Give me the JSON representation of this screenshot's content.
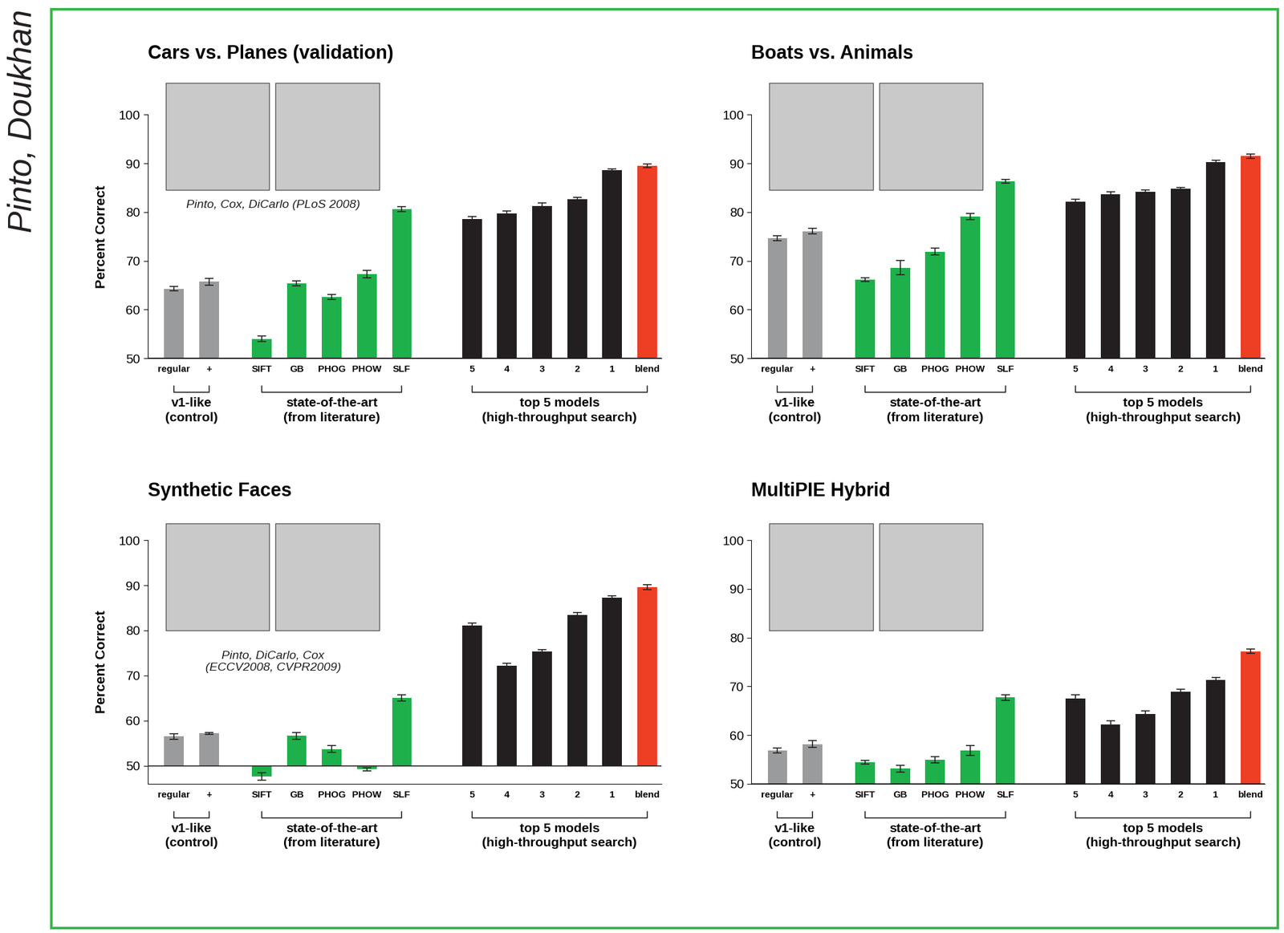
{
  "border_text": "Pinto, Doukhan",
  "chart_data": [
    {
      "type": "bar",
      "title": "Cars vs. Planes (validation)",
      "y_label": "Percent Correct",
      "citation": "Pinto, Cox, DiCarlo (PLoS 2008)",
      "ylim": [
        50,
        100
      ],
      "yticks": [
        50,
        60,
        70,
        80,
        90,
        100
      ],
      "baseline": 50,
      "groups": [
        {
          "name": "v1-like\n(control)",
          "categories": [
            "regular",
            "+"
          ],
          "values": [
            64.3,
            65.7
          ],
          "errors": [
            0.5,
            0.7
          ],
          "colors": [
            "#9a9b9d",
            "#9a9b9d"
          ]
        },
        {
          "name": "state-of-the-art\n(from literature)",
          "categories": [
            "SIFT",
            "GB",
            "PHOG",
            "PHOW",
            "SLF"
          ],
          "values": [
            54.0,
            65.4,
            62.6,
            67.3,
            80.6
          ],
          "errors": [
            0.6,
            0.5,
            0.5,
            0.8,
            0.5
          ],
          "colors": [
            "#1db04b",
            "#1db04b",
            "#1db04b",
            "#1db04b",
            "#1db04b"
          ]
        },
        {
          "name": "top 5 models\n(high-throughput search)",
          "categories": [
            "5",
            "4",
            "3",
            "2",
            "1",
            "blend"
          ],
          "values": [
            78.6,
            79.7,
            81.3,
            82.7,
            88.6,
            89.5
          ],
          "errors": [
            0.5,
            0.5,
            0.6,
            0.4,
            0.3,
            0.4
          ],
          "colors": [
            "#231f20",
            "#231f20",
            "#231f20",
            "#231f20",
            "#231f20",
            "#ee3e23"
          ]
        }
      ]
    },
    {
      "type": "bar",
      "title": "Boats vs. Animals",
      "ylim": [
        50,
        100
      ],
      "yticks": [
        50,
        60,
        70,
        80,
        90,
        100
      ],
      "baseline": 50,
      "groups": [
        {
          "name": "v1-like\n(control)",
          "categories": [
            "regular",
            "+"
          ],
          "values": [
            74.6,
            76.1
          ],
          "errors": [
            0.5,
            0.6
          ],
          "colors": [
            "#9a9b9d",
            "#9a9b9d"
          ]
        },
        {
          "name": "state-of-the-art\n(from literature)",
          "categories": [
            "SIFT",
            "GB",
            "PHOG",
            "PHOW",
            "SLF"
          ],
          "values": [
            66.1,
            68.6,
            71.9,
            79.1,
            86.3
          ],
          "errors": [
            0.4,
            1.5,
            0.7,
            0.6,
            0.4
          ],
          "colors": [
            "#1db04b",
            "#1db04b",
            "#1db04b",
            "#1db04b",
            "#1db04b"
          ]
        },
        {
          "name": "top 5 models\n(high-throughput search)",
          "categories": [
            "5",
            "4",
            "3",
            "2",
            "1",
            "blend"
          ],
          "values": [
            82.2,
            83.7,
            84.2,
            84.8,
            90.3,
            91.5
          ],
          "errors": [
            0.4,
            0.5,
            0.4,
            0.3,
            0.4,
            0.4
          ],
          "colors": [
            "#231f20",
            "#231f20",
            "#231f20",
            "#231f20",
            "#231f20",
            "#ee3e23"
          ]
        }
      ]
    },
    {
      "type": "bar",
      "title": "Synthetic Faces",
      "y_label": "Percent Correct",
      "citation": "Pinto, DiCarlo, Cox\n(ECCV2008, CVPR2009)",
      "ylim": [
        46,
        100
      ],
      "yticks": [
        50,
        60,
        70,
        80,
        90,
        100
      ],
      "baseline": 50,
      "groups": [
        {
          "name": "v1-like\n(control)",
          "categories": [
            "regular",
            "+"
          ],
          "values": [
            56.5,
            57.2
          ],
          "errors": [
            0.6,
            0.2
          ],
          "colors": [
            "#9a9b9d",
            "#9a9b9d"
          ]
        },
        {
          "name": "state-of-the-art\n(from literature)",
          "categories": [
            "SIFT",
            "GB",
            "PHOG",
            "PHOW",
            "SLF"
          ],
          "values": [
            47.6,
            56.6,
            53.7,
            49.2,
            65.0
          ],
          "errors": [
            0.8,
            0.7,
            0.7,
            0.3,
            0.7
          ],
          "colors": [
            "#1db04b",
            "#1db04b",
            "#1db04b",
            "#1db04b",
            "#1db04b"
          ]
        },
        {
          "name": "top 5 models\n(high-throughput search)",
          "categories": [
            "5",
            "4",
            "3",
            "2",
            "1",
            "blend"
          ],
          "values": [
            81.1,
            72.1,
            75.3,
            83.4,
            87.2,
            89.6
          ],
          "errors": [
            0.5,
            0.6,
            0.5,
            0.5,
            0.5,
            0.5
          ],
          "colors": [
            "#231f20",
            "#231f20",
            "#231f20",
            "#231f20",
            "#231f20",
            "#ee3e23"
          ]
        }
      ]
    },
    {
      "type": "bar",
      "title": "MultiPIE Hybrid",
      "ylim": [
        50,
        100
      ],
      "yticks": [
        50,
        60,
        70,
        80,
        90,
        100
      ],
      "baseline": 50,
      "groups": [
        {
          "name": "v1-like\n(control)",
          "categories": [
            "regular",
            "+"
          ],
          "values": [
            56.8,
            58.1
          ],
          "errors": [
            0.5,
            0.7
          ],
          "colors": [
            "#9a9b9d",
            "#9a9b9d"
          ]
        },
        {
          "name": "state-of-the-art\n(from literature)",
          "categories": [
            "SIFT",
            "GB",
            "PHOG",
            "PHOW",
            "SLF"
          ],
          "values": [
            54.4,
            53.1,
            54.9,
            56.8,
            67.7
          ],
          "errors": [
            0.4,
            0.7,
            0.6,
            1.0,
            0.6
          ],
          "colors": [
            "#1db04b",
            "#1db04b",
            "#1db04b",
            "#1db04b",
            "#1db04b"
          ]
        },
        {
          "name": "top 5 models\n(high-throughput search)",
          "categories": [
            "5",
            "4",
            "3",
            "2",
            "1",
            "blend"
          ],
          "values": [
            67.5,
            62.2,
            64.3,
            68.9,
            71.3,
            77.2
          ],
          "errors": [
            0.8,
            0.7,
            0.7,
            0.5,
            0.5,
            0.4
          ],
          "colors": [
            "#231f20",
            "#231f20",
            "#231f20",
            "#231f20",
            "#231f20",
            "#ee3e23"
          ]
        }
      ]
    }
  ]
}
